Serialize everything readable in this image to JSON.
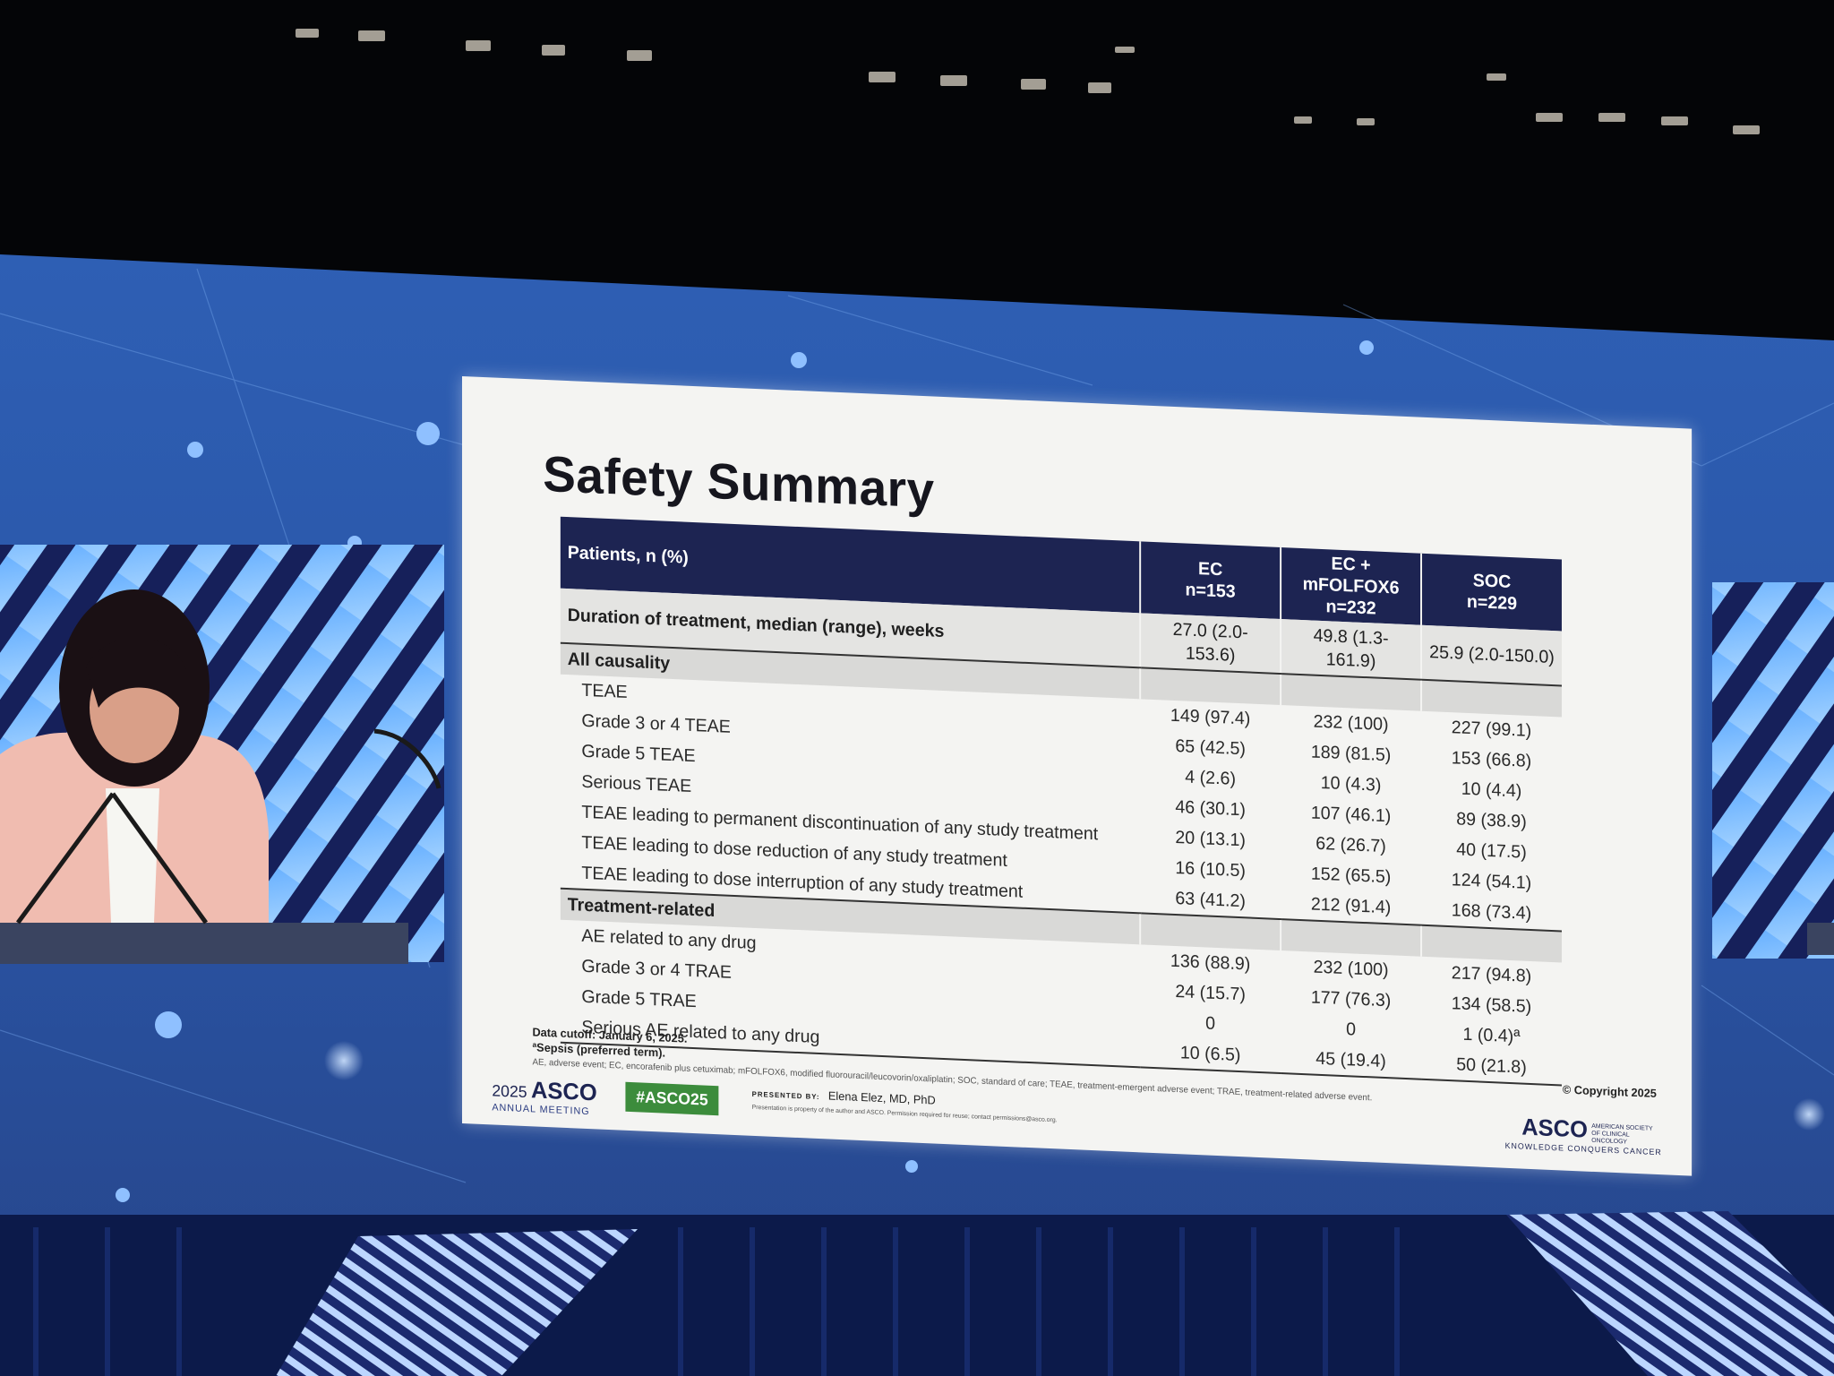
{
  "slide": {
    "title": "Safety Summary",
    "table": {
      "header_label": "Patients, n (%)",
      "columns": [
        {
          "name": "EC",
          "n": "n=153"
        },
        {
          "name": "EC + mFOLFOX6",
          "n": "n=232"
        },
        {
          "name": "SOC",
          "n": "n=229"
        }
      ],
      "duration_row": {
        "label": "Duration of treatment, median (range), weeks",
        "values": [
          "27.0 (2.0-153.6)",
          "49.8 (1.3-161.9)",
          "25.9 (2.0-150.0)"
        ]
      },
      "sections": [
        {
          "title": "All causality",
          "rows": [
            {
              "label": "TEAE",
              "values": [
                "149 (97.4)",
                "232 (100)",
                "227 (99.1)"
              ]
            },
            {
              "label": "Grade 3 or 4 TEAE",
              "values": [
                "65 (42.5)",
                "189 (81.5)",
                "153 (66.8)"
              ]
            },
            {
              "label": "Grade 5 TEAE",
              "values": [
                "4 (2.6)",
                "10 (4.3)",
                "10 (4.4)"
              ]
            },
            {
              "label": "Serious TEAE",
              "values": [
                "46 (30.1)",
                "107 (46.1)",
                "89 (38.9)"
              ]
            },
            {
              "label": "TEAE leading to permanent discontinuation of any study treatment",
              "values": [
                "20 (13.1)",
                "62 (26.7)",
                "40 (17.5)"
              ]
            },
            {
              "label": "TEAE leading to dose reduction of any study treatment",
              "values": [
                "16 (10.5)",
                "152 (65.5)",
                "124 (54.1)"
              ]
            },
            {
              "label": "TEAE leading to dose interruption of any study treatment",
              "values": [
                "63 (41.2)",
                "212 (91.4)",
                "168 (73.4)"
              ]
            }
          ]
        },
        {
          "title": "Treatment-related",
          "rows": [
            {
              "label": "AE related to any drug",
              "values": [
                "136 (88.9)",
                "232 (100)",
                "217 (94.8)"
              ]
            },
            {
              "label": "Grade 3 or 4 TRAE",
              "values": [
                "24 (15.7)",
                "177 (76.3)",
                "134 (58.5)"
              ]
            },
            {
              "label": "Grade 5 TRAE",
              "values": [
                "0",
                "0",
                "1 (0.4)ª"
              ]
            },
            {
              "label": "Serious AE related to any drug",
              "values": [
                "10 (6.5)",
                "45 (19.4)",
                "50 (21.8)"
              ]
            }
          ]
        }
      ]
    },
    "footnotes": {
      "cutoff": "Data cutoff: January 6, 2025.",
      "sepsis": "ªSepsis (preferred term).",
      "abbreviations": "AE, adverse event; EC, encorafenib plus cetuximab; mFOLFOX6, modified fluorouracil/leucovorin/oxaliplatin; SOC, standard of care; TEAE, treatment-emergent adverse event; TRAE, treatment-related adverse event.",
      "copyright": "© Copyright 2025"
    },
    "footer": {
      "meeting_year": "2025",
      "meeting_brand": "ASCO",
      "meeting_sub": "ANNUAL MEETING",
      "hashtag": "#ASCO25",
      "presented_by_label": "PRESENTED BY:",
      "presenter": "Elena Elez, MD, PhD",
      "property_note": "Presentation is property of the author and ASCO. Permission required for reuse; contact permissions@asco.org.",
      "asco_brand": "ASCO",
      "asco_society": "AMERICAN SOCIETY OF CLINICAL ONCOLOGY",
      "asco_tagline": "KNOWLEDGE CONQUERS CANCER"
    }
  },
  "colors": {
    "table_header": "#1d2452",
    "hashtag_badge": "#3c8c3c",
    "stage_blue": "#2b5fb8"
  }
}
